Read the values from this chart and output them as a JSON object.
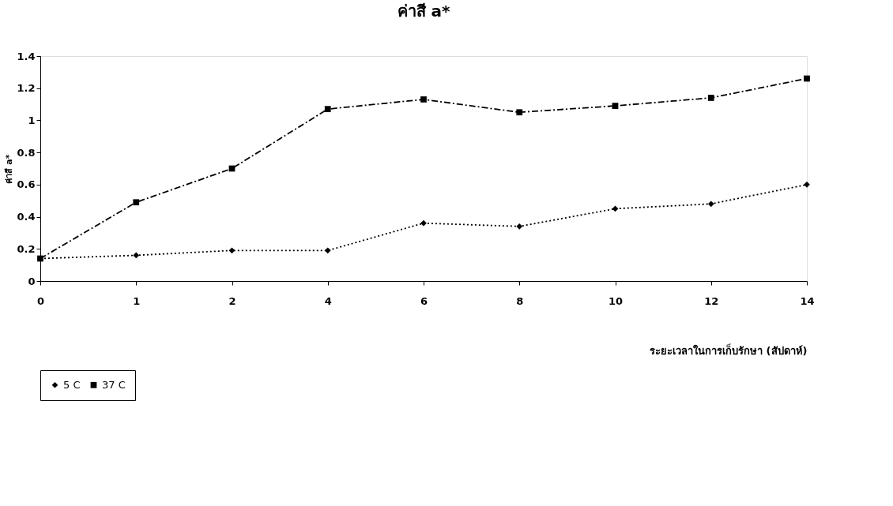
{
  "chart_data": {
    "type": "line",
    "title": "ค่าสี a*",
    "xlabel": "ระยะเวลาในการเก็บรักษา (สัปดาห์)",
    "ylabel": "ค่าสี a*",
    "categories": [
      "0",
      "1",
      "2",
      "4",
      "6",
      "8",
      "10",
      "12",
      "14"
    ],
    "series": [
      {
        "name": "5 C",
        "color": "#000000",
        "marker": "diamond",
        "line_style": "dotted",
        "values": [
          0.14,
          0.16,
          0.19,
          0.19,
          0.36,
          0.34,
          0.45,
          0.48,
          0.6
        ]
      },
      {
        "name": "37 C",
        "color": "#000000",
        "marker": "square",
        "line_style": "dashdot",
        "values": [
          0.14,
          0.49,
          0.7,
          1.07,
          1.13,
          1.05,
          1.09,
          1.14,
          1.26
        ]
      }
    ],
    "ylim": [
      0,
      1.4
    ],
    "yticks": [
      0,
      0.2,
      0.4,
      0.6,
      0.8,
      1,
      1.2,
      1.4
    ],
    "grid": false,
    "legend": "bottom left"
  }
}
